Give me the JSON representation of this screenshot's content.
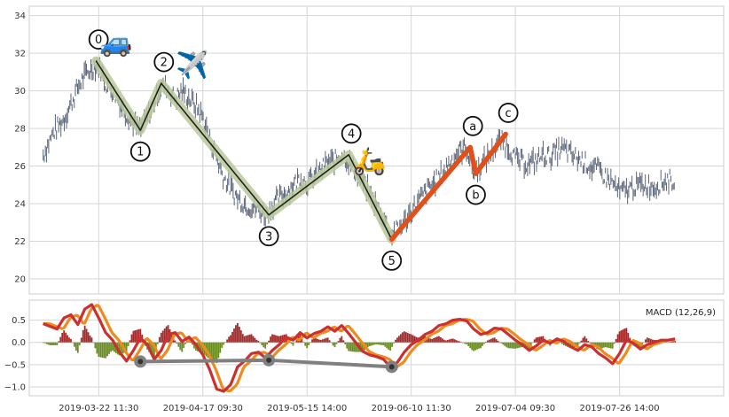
{
  "chart_data": [
    {
      "type": "line",
      "title": "",
      "xlabel": "",
      "ylabel": "",
      "ylim": [
        19.2,
        34.5
      ],
      "xlim": [
        0,
        100
      ],
      "y_ticks": [
        20,
        22,
        24,
        26,
        28,
        30,
        32,
        34
      ],
      "x_ticks": [
        {
          "pos": 10,
          "label": "2019-03-22 11:30"
        },
        {
          "pos": 25,
          "label": "2019-04-17 09:30"
        },
        {
          "pos": 40,
          "label": "2019-05-15 14:00"
        },
        {
          "pos": 55,
          "label": "2019-06-10 11:30"
        },
        {
          "pos": 70,
          "label": "2019-07-04 09:30"
        },
        {
          "pos": 85,
          "label": "2019-07-26 14:00"
        }
      ],
      "grid": true,
      "price_anchors": [
        [
          2,
          26.6
        ],
        [
          3.5,
          27.8
        ],
        [
          5,
          28.5
        ],
        [
          6,
          29.3
        ],
        [
          7,
          30.2
        ],
        [
          8,
          30.8
        ],
        [
          9,
          31.2
        ],
        [
          10,
          31.4
        ],
        [
          11,
          30.4
        ],
        [
          12,
          30.0
        ],
        [
          13,
          29.4
        ],
        [
          14,
          28.8
        ],
        [
          15,
          28.3
        ],
        [
          16,
          27.9
        ],
        [
          17,
          28.6
        ],
        [
          18,
          29.4
        ],
        [
          19,
          30.3
        ],
        [
          20,
          30.1
        ],
        [
          21,
          29.6
        ],
        [
          22,
          30.0
        ],
        [
          23,
          29.6
        ],
        [
          24,
          29.2
        ],
        [
          25,
          28.6
        ],
        [
          26,
          27.4
        ],
        [
          27,
          26.4
        ],
        [
          28,
          25.4
        ],
        [
          29,
          24.8
        ],
        [
          30,
          24.3
        ],
        [
          31,
          24.0
        ],
        [
          32,
          23.8
        ],
        [
          33,
          23.7
        ],
        [
          34,
          23.4
        ],
        [
          35,
          23.9
        ],
        [
          36,
          24.3
        ],
        [
          37,
          24.6
        ],
        [
          38,
          25.0
        ],
        [
          39,
          25.4
        ],
        [
          40,
          25.1
        ],
        [
          41,
          25.4
        ],
        [
          42,
          25.8
        ],
        [
          43,
          26.2
        ],
        [
          44,
          26.3
        ],
        [
          45,
          26.7
        ],
        [
          46,
          26.2
        ],
        [
          47,
          25.7
        ],
        [
          48,
          25.2
        ],
        [
          49,
          24.5
        ],
        [
          50,
          23.9
        ],
        [
          51,
          23.3
        ],
        [
          52,
          22.4
        ],
        [
          53,
          22.6
        ],
        [
          54,
          23.0
        ],
        [
          55,
          23.6
        ],
        [
          56,
          24.1
        ],
        [
          57,
          24.6
        ],
        [
          58,
          25.0
        ],
        [
          59,
          25.4
        ],
        [
          60,
          25.9
        ],
        [
          61,
          26.4
        ],
        [
          62,
          26.8
        ],
        [
          63,
          27.0
        ],
        [
          64,
          25.6
        ],
        [
          65,
          26.0
        ],
        [
          66,
          26.5
        ],
        [
          67,
          27.0
        ],
        [
          68,
          27.4
        ],
        [
          69,
          27.0
        ],
        [
          70,
          26.4
        ],
        [
          71,
          26.2
        ],
        [
          72,
          26.1
        ],
        [
          73,
          26.3
        ],
        [
          74,
          26.6
        ],
        [
          75,
          26.5
        ],
        [
          76,
          26.8
        ],
        [
          77,
          26.9
        ],
        [
          78,
          26.6
        ],
        [
          79,
          26.4
        ],
        [
          80,
          26.2
        ],
        [
          81,
          25.9
        ],
        [
          82,
          25.8
        ],
        [
          83,
          25.4
        ],
        [
          84,
          25.1
        ],
        [
          85,
          24.6
        ],
        [
          86,
          24.7
        ],
        [
          87,
          24.9
        ],
        [
          88,
          25.0
        ],
        [
          89,
          25.0
        ],
        [
          90,
          24.9
        ],
        [
          91,
          25.1
        ],
        [
          92,
          25.3
        ],
        [
          93,
          25.2
        ]
      ],
      "series": [
        {
          "kind": "elliott-impulse",
          "color": "#222222",
          "band_color": "#b8c89a",
          "points": [
            {
              "label": "0",
              "x": 9.6,
              "y": 31.6
            },
            {
              "label": "1",
              "x": 16.0,
              "y": 27.9
            },
            {
              "label": "2",
              "x": 19.0,
              "y": 30.4
            },
            {
              "label": "3",
              "x": 34.5,
              "y": 23.4
            },
            {
              "label": "4",
              "x": 46.0,
              "y": 26.6
            },
            {
              "label": "5",
              "x": 52.2,
              "y": 22.1
            }
          ]
        },
        {
          "kind": "elliott-correction",
          "color": "#e0501a",
          "points": [
            {
              "label": "5",
              "x": 52.2,
              "y": 22.1
            },
            {
              "label": "a",
              "x": 63.5,
              "y": 27.0
            },
            {
              "label": "b",
              "x": 64.3,
              "y": 25.6
            },
            {
              "label": "c",
              "x": 68.6,
              "y": 27.7
            }
          ]
        }
      ],
      "emoji": [
        {
          "name": "car-icon",
          "glyph": "🚙",
          "x": 12.5,
          "y": 32.1
        },
        {
          "name": "airplane-icon",
          "glyph": "✈️",
          "x": 23.5,
          "y": 30.9
        },
        {
          "name": "scooter-icon",
          "glyph": "🛵",
          "x": 49.0,
          "y": 25.8
        }
      ]
    },
    {
      "type": "line",
      "title": "",
      "legend_label": "MACD (12,26,9)",
      "xlabel": "",
      "ylabel": "",
      "ylim": [
        -1.2,
        0.95
      ],
      "xlim": [
        0,
        100
      ],
      "y_ticks": [
        {
          "v": 0.5,
          "label": "0.5"
        },
        {
          "v": 0.0,
          "label": "0.0"
        },
        {
          "v": -0.5,
          "label": "−0.5"
        },
        {
          "v": -1.0,
          "label": "−1.0"
        }
      ],
      "grid": true,
      "macd_anchors": [
        [
          2,
          0.42
        ],
        [
          4,
          0.3
        ],
        [
          5,
          0.55
        ],
        [
          6,
          0.62
        ],
        [
          7,
          0.4
        ],
        [
          8,
          0.75
        ],
        [
          9,
          0.85
        ],
        [
          10,
          0.55
        ],
        [
          11,
          0.22
        ],
        [
          12,
          0.05
        ],
        [
          13,
          -0.22
        ],
        [
          14,
          -0.42
        ],
        [
          15,
          -0.18
        ],
        [
          16,
          0.1
        ],
        [
          17,
          -0.05
        ],
        [
          18,
          -0.38
        ],
        [
          19,
          -0.18
        ],
        [
          20,
          0.18
        ],
        [
          21,
          0.22
        ],
        [
          22,
          0.02
        ],
        [
          23,
          0.12
        ],
        [
          24,
          -0.05
        ],
        [
          25,
          -0.28
        ],
        [
          26,
          -0.62
        ],
        [
          27,
          -1.05
        ],
        [
          28,
          -1.1
        ],
        [
          29,
          -0.95
        ],
        [
          30,
          -0.55
        ],
        [
          31,
          -0.42
        ],
        [
          32,
          -0.25
        ],
        [
          33,
          -0.22
        ],
        [
          34,
          -0.35
        ],
        [
          35,
          -0.18
        ],
        [
          36,
          -0.05
        ],
        [
          37,
          0.12
        ],
        [
          38,
          0.05
        ],
        [
          39,
          0.22
        ],
        [
          40,
          0.1
        ],
        [
          41,
          0.2
        ],
        [
          42,
          0.25
        ],
        [
          43,
          0.35
        ],
        [
          44,
          0.25
        ],
        [
          45,
          0.38
        ],
        [
          46,
          0.2
        ],
        [
          47,
          0.0
        ],
        [
          48,
          -0.2
        ],
        [
          49,
          -0.28
        ],
        [
          50,
          -0.32
        ],
        [
          51,
          -0.38
        ],
        [
          52,
          -0.55
        ],
        [
          53,
          -0.45
        ],
        [
          54,
          -0.22
        ],
        [
          55,
          -0.05
        ],
        [
          56,
          0.05
        ],
        [
          57,
          0.18
        ],
        [
          58,
          0.25
        ],
        [
          59,
          0.38
        ],
        [
          60,
          0.42
        ],
        [
          61,
          0.5
        ],
        [
          62,
          0.52
        ],
        [
          63,
          0.48
        ],
        [
          64,
          0.3
        ],
        [
          65,
          0.18
        ],
        [
          66,
          0.22
        ],
        [
          67,
          0.32
        ],
        [
          68,
          0.3
        ],
        [
          69,
          0.18
        ],
        [
          70,
          0.05
        ],
        [
          71,
          -0.05
        ],
        [
          72,
          -0.18
        ],
        [
          73,
          -0.08
        ],
        [
          74,
          0.05
        ],
        [
          75,
          -0.02
        ],
        [
          76,
          0.08
        ],
        [
          77,
          0.02
        ],
        [
          78,
          -0.1
        ],
        [
          79,
          -0.18
        ],
        [
          80,
          -0.05
        ],
        [
          81,
          -0.1
        ],
        [
          82,
          -0.25
        ],
        [
          83,
          -0.35
        ],
        [
          84,
          -0.48
        ],
        [
          85,
          -0.25
        ],
        [
          86,
          0.05
        ],
        [
          87,
          -0.02
        ],
        [
          88,
          -0.15
        ],
        [
          89,
          -0.05
        ],
        [
          90,
          0.0
        ],
        [
          91,
          0.05
        ],
        [
          92,
          0.05
        ],
        [
          93,
          0.08
        ]
      ],
      "series": [
        {
          "kind": "macd-signal",
          "color": "#f18a1c"
        },
        {
          "kind": "macd-line",
          "color": "#cc2f2f"
        },
        {
          "kind": "divergence",
          "color": "#808080",
          "points": [
            {
              "x": 16.0,
              "y": -0.43
            },
            {
              "x": 34.5,
              "y": -0.4
            },
            {
              "x": 52.2,
              "y": -0.55
            }
          ]
        }
      ],
      "histogram_colors": {
        "positive": "#a52a2a",
        "negative": "#6b8e23"
      }
    }
  ]
}
